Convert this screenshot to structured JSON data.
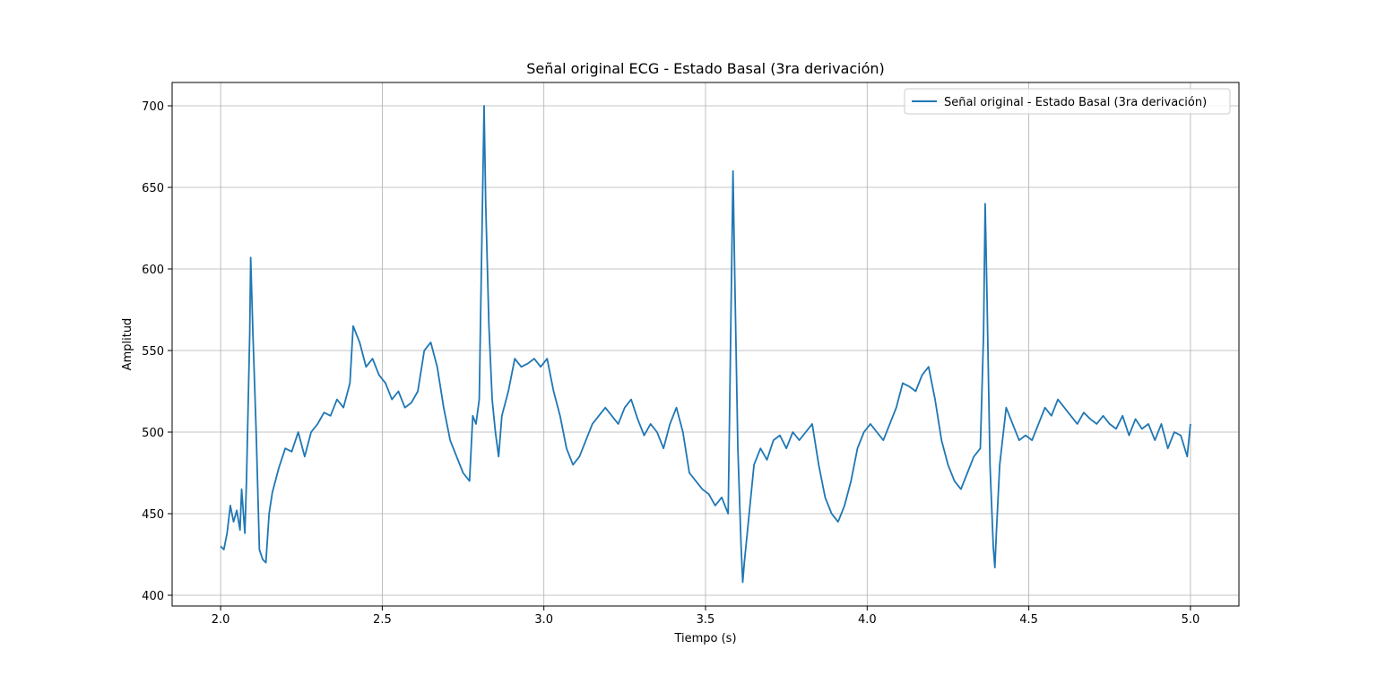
{
  "chart_data": {
    "type": "line",
    "title": "Señal original ECG - Estado Basal (3ra derivación)",
    "x_label": "Tiempo (s)",
    "y_label": "Amplitud",
    "xlim": [
      1.85,
      5.15
    ],
    "ylim": [
      393.4,
      714.3
    ],
    "xticks": [
      {
        "value": 2,
        "label": "2.0"
      },
      2.5,
      {
        "value": 3,
        "label": "3.0"
      },
      3.5,
      {
        "value": 4,
        "label": "4.0"
      },
      4.5,
      {
        "value": 5,
        "label": "5.0"
      }
    ],
    "yticks": [
      400,
      450,
      500,
      550,
      600,
      650,
      700
    ],
    "grid": true,
    "legend_position": "upper-right",
    "series": [
      {
        "name": "Señal original - Estado Basal (3ra derivación)",
        "color": "#1f77b4",
        "x": [
          2.0,
          2.01,
          2.02,
          2.03,
          2.04,
          2.05,
          2.06,
          2.065,
          2.075,
          2.08,
          2.09,
          2.093,
          2.1,
          2.11,
          2.12,
          2.13,
          2.14,
          2.15,
          2.16,
          2.18,
          2.2,
          2.22,
          2.24,
          2.26,
          2.28,
          2.3,
          2.32,
          2.34,
          2.36,
          2.38,
          2.4,
          2.41,
          2.43,
          2.45,
          2.47,
          2.49,
          2.51,
          2.53,
          2.55,
          2.57,
          2.59,
          2.61,
          2.63,
          2.65,
          2.67,
          2.69,
          2.71,
          2.73,
          2.75,
          2.77,
          2.78,
          2.79,
          2.8,
          2.81,
          2.815,
          2.82,
          2.83,
          2.84,
          2.85,
          2.86,
          2.87,
          2.89,
          2.91,
          2.93,
          2.95,
          2.97,
          2.99,
          3.01,
          3.03,
          3.05,
          3.07,
          3.09,
          3.11,
          3.13,
          3.15,
          3.17,
          3.19,
          3.21,
          3.23,
          3.25,
          3.27,
          3.29,
          3.31,
          3.33,
          3.35,
          3.37,
          3.39,
          3.41,
          3.43,
          3.45,
          3.47,
          3.49,
          3.51,
          3.53,
          3.55,
          3.57,
          3.575,
          3.585,
          3.59,
          3.6,
          3.61,
          3.615,
          3.62,
          3.63,
          3.65,
          3.67,
          3.69,
          3.71,
          3.73,
          3.75,
          3.77,
          3.79,
          3.81,
          3.83,
          3.85,
          3.87,
          3.89,
          3.91,
          3.93,
          3.95,
          3.97,
          3.99,
          4.01,
          4.03,
          4.05,
          4.07,
          4.09,
          4.11,
          4.13,
          4.15,
          4.17,
          4.19,
          4.21,
          4.23,
          4.25,
          4.27,
          4.29,
          4.31,
          4.33,
          4.35,
          4.36,
          4.365,
          4.37,
          4.38,
          4.39,
          4.395,
          4.4,
          4.41,
          4.43,
          4.45,
          4.47,
          4.49,
          4.51,
          4.53,
          4.55,
          4.57,
          4.59,
          4.61,
          4.63,
          4.65,
          4.67,
          4.69,
          4.71,
          4.73,
          4.75,
          4.77,
          4.79,
          4.81,
          4.83,
          4.85,
          4.87,
          4.89,
          4.91,
          4.93,
          4.95,
          4.97,
          4.99,
          5.0
        ],
        "values": [
          430,
          428,
          438,
          455,
          445,
          452,
          440,
          465,
          438,
          470,
          560,
          607,
          560,
          500,
          428,
          422,
          420,
          450,
          463,
          478,
          490,
          488,
          500,
          485,
          500,
          505,
          512,
          510,
          520,
          515,
          530,
          565,
          555,
          540,
          545,
          535,
          530,
          520,
          525,
          515,
          518,
          525,
          550,
          555,
          540,
          515,
          495,
          485,
          475,
          470,
          510,
          505,
          520,
          640,
          700,
          640,
          565,
          520,
          500,
          485,
          510,
          525,
          545,
          540,
          542,
          545,
          540,
          545,
          525,
          510,
          490,
          480,
          485,
          495,
          505,
          510,
          515,
          510,
          505,
          515,
          520,
          508,
          498,
          505,
          500,
          490,
          505,
          515,
          500,
          475,
          470,
          465,
          462,
          455,
          460,
          450,
          520,
          660,
          600,
          490,
          430,
          408,
          420,
          440,
          480,
          490,
          483,
          495,
          498,
          490,
          500,
          495,
          500,
          505,
          480,
          460,
          450,
          445,
          455,
          470,
          490,
          500,
          505,
          500,
          495,
          505,
          515,
          530,
          528,
          525,
          535,
          540,
          520,
          495,
          480,
          470,
          465,
          475,
          485,
          490,
          560,
          640,
          590,
          480,
          430,
          417,
          440,
          480,
          515,
          505,
          495,
          498,
          495,
          505,
          515,
          510,
          520,
          515,
          510,
          505,
          512,
          508,
          505,
          510,
          505,
          502,
          510,
          498,
          508,
          502,
          505,
          495,
          505,
          490,
          500,
          498,
          485,
          505
        ]
      }
    ]
  }
}
